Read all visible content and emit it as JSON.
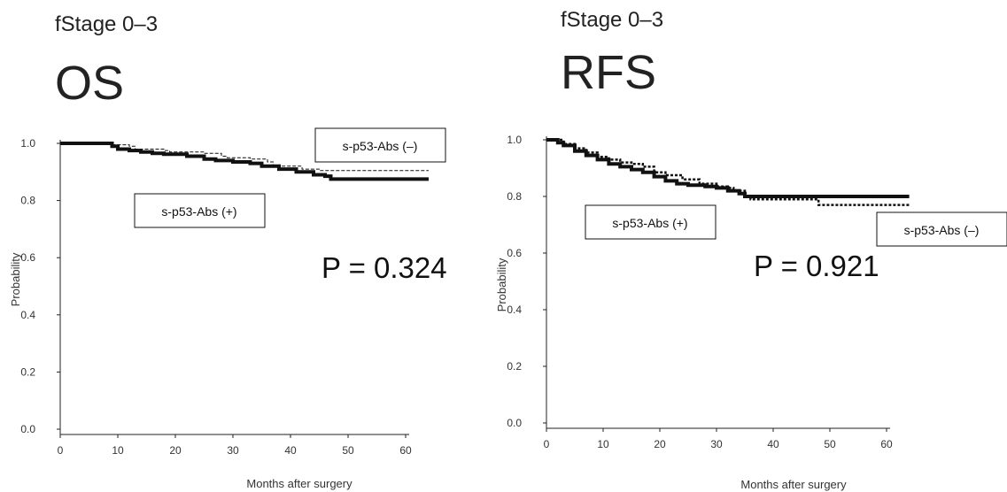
{
  "chart_data": [
    {
      "type": "line",
      "subtitle": "fStage 0–3",
      "title": "OS",
      "xlabel": "Months after surgery",
      "ylabel": "Probability",
      "xlim": [
        0,
        60
      ],
      "ylim": [
        0.0,
        1.0
      ],
      "xticks": [
        "0",
        "10",
        "20",
        "30",
        "40",
        "50",
        "60"
      ],
      "yticks": [
        "0.0",
        "0.2",
        "0.4",
        "0.6",
        "0.8",
        "1.0"
      ],
      "grid": false,
      "annotation": "P = 0.324",
      "series": [
        {
          "name": "s-p53-Abs (–)",
          "style": "dashed-thin",
          "x": [
            0,
            8,
            9,
            12,
            13,
            18,
            19,
            25,
            28,
            29,
            33,
            36,
            37,
            42,
            45,
            64
          ],
          "y": [
            1.0,
            1.0,
            0.995,
            0.99,
            0.98,
            0.975,
            0.97,
            0.965,
            0.955,
            0.95,
            0.945,
            0.935,
            0.92,
            0.91,
            0.905,
            0.905
          ]
        },
        {
          "name": "s-p53-Abs (+)",
          "style": "solid-thick",
          "x": [
            0,
            8,
            9,
            10,
            12,
            14,
            16,
            18,
            22,
            25,
            27,
            30,
            33,
            35,
            38,
            41,
            44,
            46,
            47,
            64
          ],
          "y": [
            1.0,
            1.0,
            0.99,
            0.98,
            0.975,
            0.97,
            0.965,
            0.962,
            0.955,
            0.945,
            0.94,
            0.935,
            0.93,
            0.92,
            0.91,
            0.9,
            0.89,
            0.885,
            0.875,
            0.875
          ]
        }
      ]
    },
    {
      "type": "line",
      "subtitle": "fStage 0–3",
      "title": "RFS",
      "xlabel": "Months after surgery",
      "ylabel": "Probability",
      "xlim": [
        0,
        60
      ],
      "ylim": [
        0.0,
        1.0
      ],
      "xticks": [
        "0",
        "10",
        "20",
        "30",
        "40",
        "50",
        "60"
      ],
      "yticks": [
        "0.0",
        "0.2",
        "0.4",
        "0.6",
        "0.8",
        "1.0"
      ],
      "grid": false,
      "annotation": "P = 0.921",
      "series": [
        {
          "name": "s-p53-Abs (–)",
          "style": "dashed-thick",
          "x": [
            0,
            2,
            3,
            5,
            7,
            9,
            11,
            13,
            15,
            17,
            19,
            21,
            24,
            27,
            30,
            32,
            33,
            35,
            36,
            40,
            47,
            48,
            64
          ],
          "y": [
            1.0,
            1.0,
            0.985,
            0.97,
            0.955,
            0.94,
            0.93,
            0.92,
            0.915,
            0.905,
            0.885,
            0.875,
            0.86,
            0.845,
            0.835,
            0.83,
            0.82,
            0.8,
            0.79,
            0.79,
            0.79,
            0.77,
            0.77
          ]
        },
        {
          "name": "s-p53-Abs (+)",
          "style": "solid-thick",
          "x": [
            0,
            1,
            2,
            3,
            5,
            7,
            9,
            11,
            13,
            15,
            17,
            19,
            21,
            23,
            25,
            28,
            30,
            32,
            34,
            35,
            64
          ],
          "y": [
            1.0,
            1.0,
            0.99,
            0.98,
            0.96,
            0.945,
            0.93,
            0.915,
            0.905,
            0.895,
            0.885,
            0.87,
            0.855,
            0.845,
            0.84,
            0.835,
            0.83,
            0.82,
            0.81,
            0.8,
            0.8
          ]
        }
      ]
    }
  ]
}
